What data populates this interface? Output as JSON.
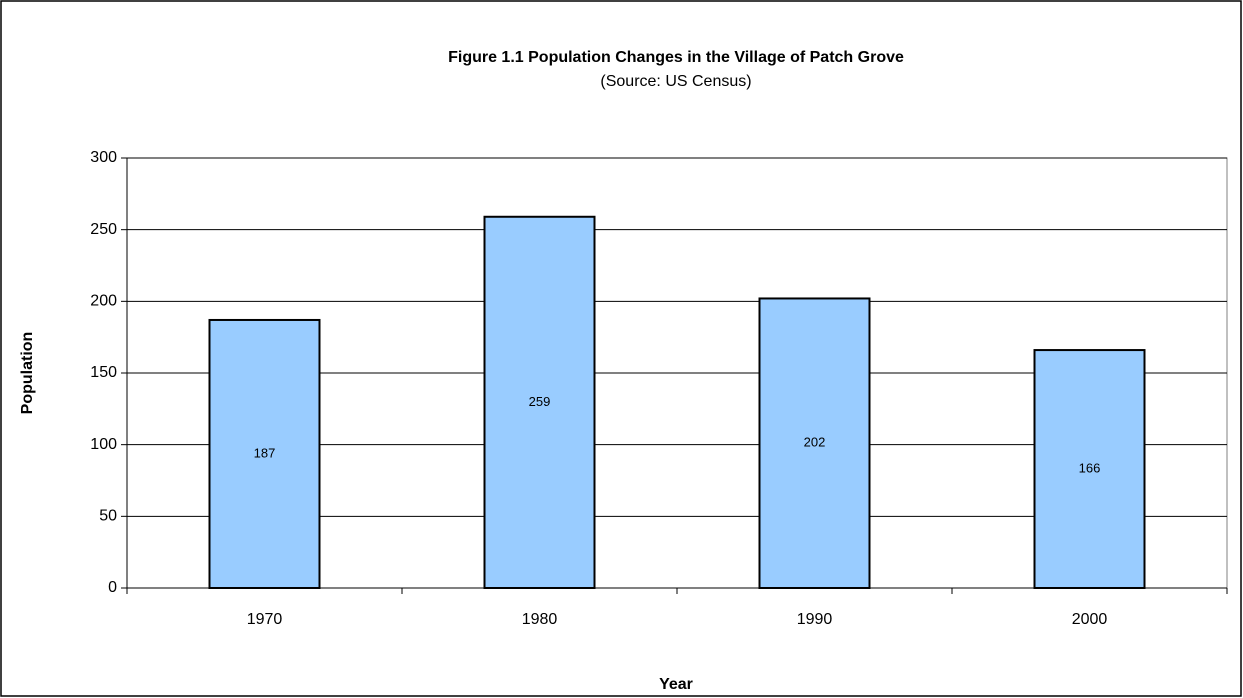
{
  "chart_data": {
    "type": "bar",
    "title": "Figure 1.1 Population Changes in the Village of Patch Grove",
    "subtitle": "(Source: US Census)",
    "x_label": "Year",
    "y_label": "Population",
    "categories": [
      "1970",
      "1980",
      "1990",
      "2000"
    ],
    "values": [
      187,
      259,
      202,
      166
    ],
    "color": "#99ccff",
    "ylim": [
      0,
      300
    ],
    "yticks": [
      0,
      50,
      100,
      150,
      200,
      250,
      300
    ],
    "grid": true
  }
}
